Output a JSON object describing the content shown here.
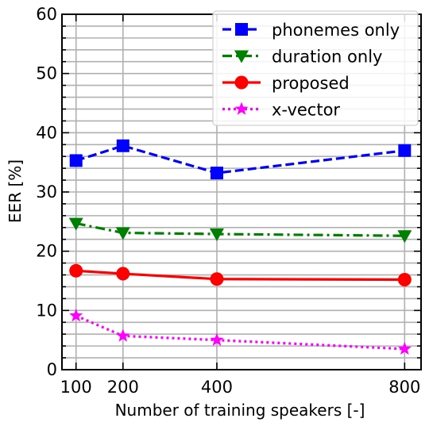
{
  "chart_data": {
    "type": "line",
    "xlabel": "Number of training speakers [-]",
    "ylabel": "EER [%]",
    "x": [
      100,
      200,
      400,
      800
    ],
    "x_tick_labels": [
      "100",
      "200",
      "400",
      "800"
    ],
    "xlim": [
      70,
      835
    ],
    "ylim": [
      0,
      60
    ],
    "y_ticks": [
      0,
      10,
      20,
      30,
      40,
      50,
      60
    ],
    "y_tick_labels": [
      "0",
      "10",
      "20",
      "30",
      "40",
      "50",
      "60"
    ],
    "y_minor_step": 2,
    "grid": true,
    "legend_position": "top-right",
    "series": [
      {
        "name": "phonemes only",
        "values": [
          35.3,
          37.8,
          33.2,
          37.0
        ],
        "color": "#0000ff",
        "linestyle": "dashed",
        "marker": "square"
      },
      {
        "name": "duration only",
        "values": [
          24.7,
          23.1,
          22.9,
          22.6
        ],
        "color": "#008000",
        "linestyle": "dashdot",
        "marker": "triangle-down"
      },
      {
        "name": "proposed",
        "values": [
          16.7,
          16.2,
          15.3,
          15.2
        ],
        "color": "#ff0000",
        "linestyle": "solid",
        "marker": "circle"
      },
      {
        "name": "x-vector",
        "values": [
          9.1,
          5.7,
          5.0,
          3.5
        ],
        "color": "#ff00ff",
        "linestyle": "dotted",
        "marker": "star"
      }
    ]
  }
}
